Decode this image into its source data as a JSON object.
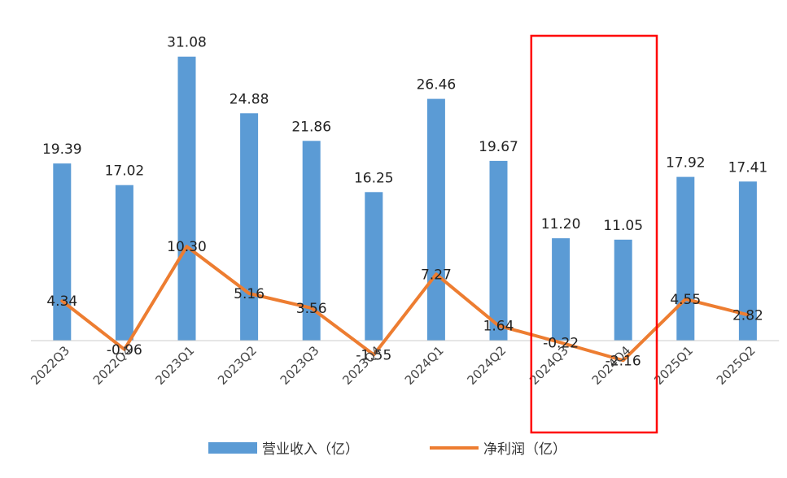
{
  "chart_data": {
    "type": "bar",
    "title": "",
    "xlabel": "",
    "ylabel": "",
    "categories": [
      "2022Q3",
      "2022Q4",
      "2023Q1",
      "2023Q2",
      "2023Q3",
      "2023Q4",
      "2024Q1",
      "2024Q2",
      "2024Q3",
      "2024Q4",
      "2025Q1",
      "2025Q2"
    ],
    "series": [
      {
        "name": "营业收入（亿）",
        "type": "bar",
        "color": "#5B9BD5",
        "values": [
          19.39,
          17.02,
          31.08,
          24.88,
          21.86,
          16.25,
          26.46,
          19.67,
          11.2,
          11.05,
          17.92,
          17.41
        ]
      },
      {
        "name": "净利润（亿）",
        "type": "line",
        "color": "#ED7D31",
        "values": [
          4.34,
          -0.96,
          10.3,
          5.16,
          3.56,
          -1.55,
          7.27,
          1.64,
          -0.22,
          -2.16,
          4.55,
          2.82
        ]
      }
    ],
    "ylim": [
      -4,
      32
    ],
    "grid": false,
    "legend_position": "bottom",
    "highlight": {
      "categories": [
        "2024Q3",
        "2024Q4"
      ],
      "color": "#FF0000"
    }
  }
}
